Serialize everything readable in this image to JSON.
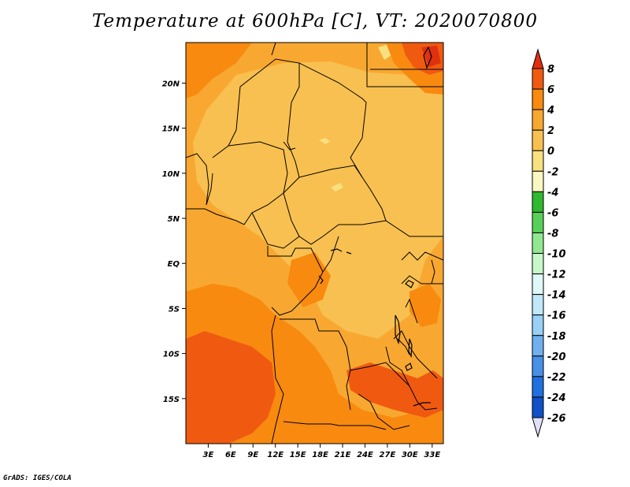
{
  "title": "Temperature at 600hPa [C], VT: 2020070800",
  "credit": "GrADS: IGES/COLA",
  "map": {
    "lon_range": [
      0,
      34.5
    ],
    "lat_range": [
      -20,
      24.5
    ],
    "lon_ticks": [
      {
        "value": 3,
        "label": "3E"
      },
      {
        "value": 6,
        "label": "6E"
      },
      {
        "value": 9,
        "label": "9E"
      },
      {
        "value": 12,
        "label": "12E"
      },
      {
        "value": 15,
        "label": "15E"
      },
      {
        "value": 18,
        "label": "18E"
      },
      {
        "value": 21,
        "label": "21E"
      },
      {
        "value": 24,
        "label": "24E"
      },
      {
        "value": 27,
        "label": "27E"
      },
      {
        "value": 30,
        "label": "30E"
      },
      {
        "value": 33,
        "label": "33E"
      }
    ],
    "lat_ticks": [
      {
        "value": 20,
        "label": "20N"
      },
      {
        "value": 15,
        "label": "15N"
      },
      {
        "value": 10,
        "label": "10N"
      },
      {
        "value": 5,
        "label": "5N"
      },
      {
        "value": 0,
        "label": "EQ"
      },
      {
        "value": -5,
        "label": "5S"
      },
      {
        "value": -10,
        "label": "10S"
      },
      {
        "value": -15,
        "label": "15S"
      }
    ]
  },
  "colorbar": {
    "levels": [
      "8",
      "6",
      "4",
      "2",
      "0",
      "-2",
      "-4",
      "-6",
      "-8",
      "-10",
      "-12",
      "-14",
      "-16",
      "-18",
      "-20",
      "-22",
      "-24",
      "-26"
    ],
    "colors": [
      "#e03010",
      "#f05a10",
      "#f88a10",
      "#f8a830",
      "#f8c050",
      "#f8e080",
      "#f8f8c0",
      "#30b830",
      "#58d058",
      "#90e890",
      "#c8f8c8",
      "#e0f8f8",
      "#c0e8f8",
      "#98d0f8",
      "#70b0f0",
      "#4890e8",
      "#2070e0",
      "#1050c8",
      "#0838a0",
      "#081878"
    ],
    "top_color": "#e03010",
    "bottom_color": "#e0e0f8"
  }
}
